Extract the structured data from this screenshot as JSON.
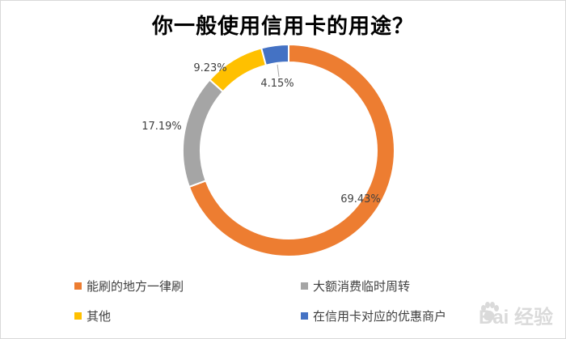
{
  "chart_data": {
    "type": "pie",
    "title": "你一般使用信用卡的用途？",
    "legend_position": "bottom",
    "categories": [
      "能刷的地方一律刷",
      "大额消费临时周转",
      "其他",
      "在信用卡对应的优惠商户"
    ],
    "values": [
      69.43,
      17.19,
      9.23,
      4.15
    ],
    "value_labels": [
      "69.43%",
      "17.19%",
      "9.23%",
      "4.15%"
    ],
    "colors": [
      "#ED7D31",
      "#A5A5A5",
      "#FFC000",
      "#4472C4"
    ],
    "donut": true
  },
  "watermark": {
    "text": "Bai 经验"
  }
}
